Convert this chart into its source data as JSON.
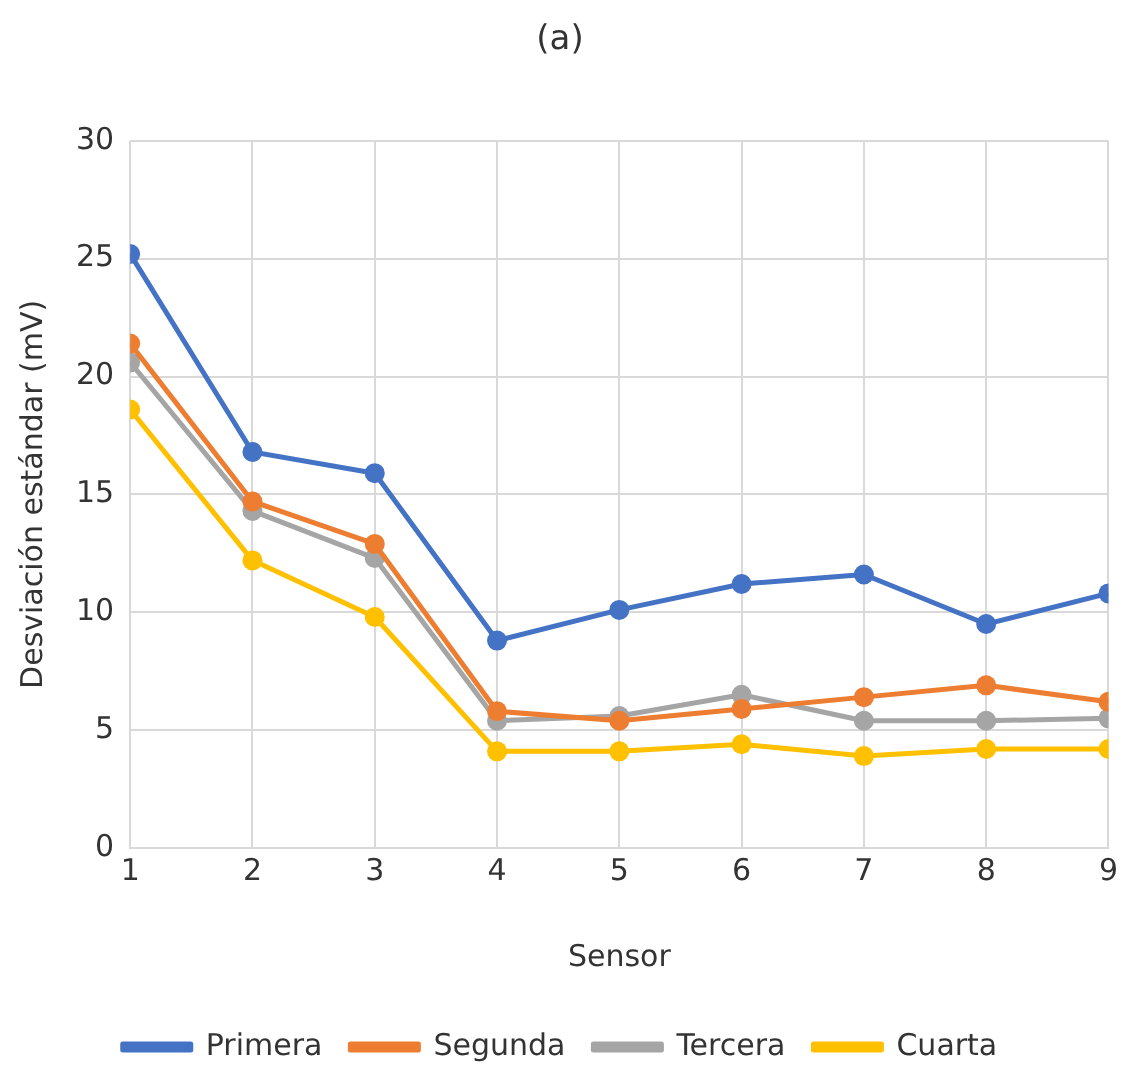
{
  "chart_data": {
    "type": "line",
    "title": "(a)",
    "xlabel": "Sensor",
    "ylabel": "Desviación estándar (mV)",
    "x": [
      1,
      2,
      3,
      4,
      5,
      6,
      7,
      8,
      9
    ],
    "series": [
      {
        "name": "Primera",
        "color": "#4472c4",
        "values": [
          25.2,
          16.8,
          15.9,
          8.8,
          10.1,
          11.2,
          11.6,
          9.5,
          10.8
        ]
      },
      {
        "name": "Segunda",
        "color": "#ed7d31",
        "values": [
          21.4,
          14.7,
          12.9,
          5.8,
          5.4,
          5.9,
          6.4,
          6.9,
          6.2
        ]
      },
      {
        "name": "Tercera",
        "color": "#a5a5a5",
        "values": [
          20.6,
          14.3,
          12.3,
          5.4,
          5.6,
          6.5,
          5.4,
          5.4,
          5.5
        ]
      },
      {
        "name": "Cuarta",
        "color": "#ffc000",
        "values": [
          18.6,
          12.2,
          9.8,
          4.1,
          4.1,
          4.4,
          3.9,
          4.2,
          4.2
        ]
      }
    ],
    "xlim": [
      1,
      9
    ],
    "xticks": [
      1,
      2,
      3,
      4,
      5,
      6,
      7,
      8,
      9
    ],
    "ylim": [
      0,
      30
    ],
    "yticks": [
      0,
      5,
      10,
      15,
      20,
      25,
      30
    ],
    "grid": true,
    "legend": "bottom",
    "marker": "circle",
    "line_style": "solid"
  }
}
